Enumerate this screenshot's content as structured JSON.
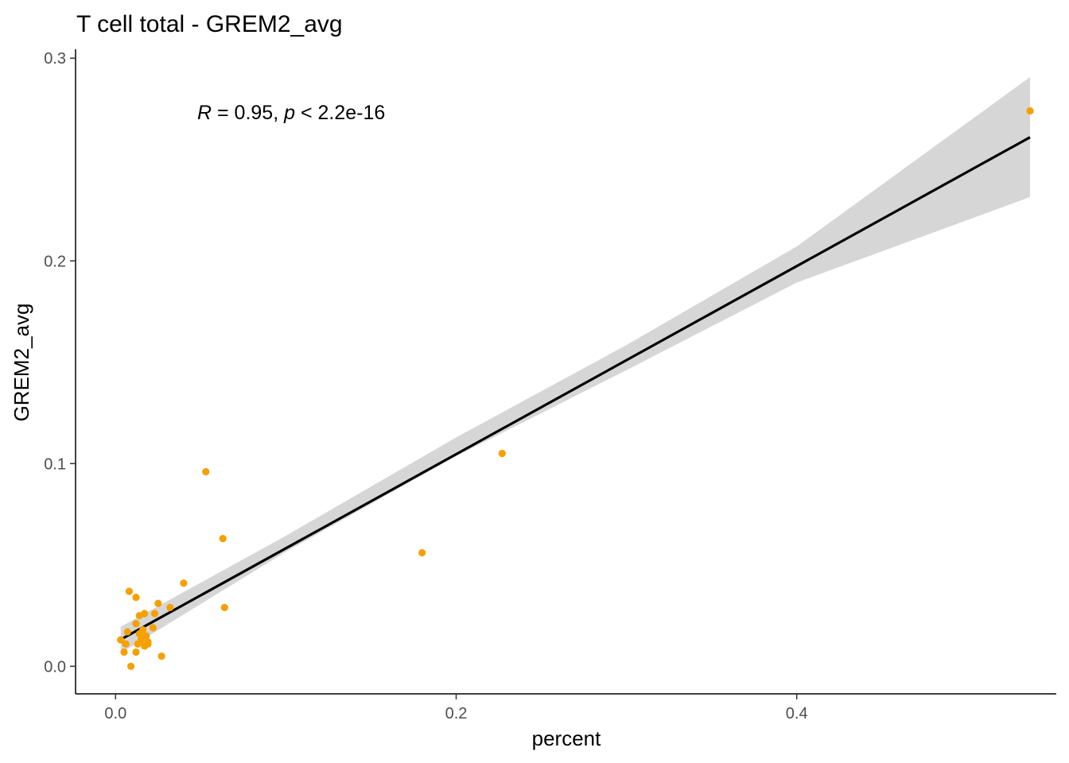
{
  "chart_data": {
    "type": "scatter",
    "title": "T cell total - GREM2_avg",
    "xlabel": "percent",
    "ylabel": "GREM2_avg",
    "xlim": [
      -0.0235,
      0.5524
    ],
    "ylim": [
      -0.0136,
      0.3044
    ],
    "x_ticks": [
      0.0,
      0.2,
      0.4
    ],
    "x_tick_labels": [
      "0.0",
      "0.2",
      "0.4"
    ],
    "y_ticks": [
      0.0,
      0.1,
      0.2,
      0.3
    ],
    "y_tick_labels": [
      "0.0",
      "0.1",
      "0.2",
      "0.3"
    ],
    "grid": false,
    "point_color": "#F5A000",
    "line_color": "#000000",
    "band_color": "#D6D6D6",
    "annotation": {
      "r_symbol": "R",
      "r_text": " = 0.95, ",
      "p_symbol": "p",
      "p_text": " < 2.2e-16"
    },
    "points": [
      {
        "x": 0.003,
        "y": 0.013
      },
      {
        "x": 0.005,
        "y": 0.007
      },
      {
        "x": 0.006,
        "y": 0.011
      },
      {
        "x": 0.007,
        "y": 0.017
      },
      {
        "x": 0.008,
        "y": 0.037
      },
      {
        "x": 0.009,
        "y": 0.0
      },
      {
        "x": 0.012,
        "y": 0.007
      },
      {
        "x": 0.012,
        "y": 0.021
      },
      {
        "x": 0.012,
        "y": 0.034
      },
      {
        "x": 0.013,
        "y": 0.011
      },
      {
        "x": 0.014,
        "y": 0.016
      },
      {
        "x": 0.014,
        "y": 0.025
      },
      {
        "x": 0.015,
        "y": 0.013
      },
      {
        "x": 0.016,
        "y": 0.018
      },
      {
        "x": 0.017,
        "y": 0.01
      },
      {
        "x": 0.017,
        "y": 0.026
      },
      {
        "x": 0.018,
        "y": 0.015
      },
      {
        "x": 0.019,
        "y": 0.011
      },
      {
        "x": 0.019,
        "y": 0.012
      },
      {
        "x": 0.022,
        "y": 0.019
      },
      {
        "x": 0.023,
        "y": 0.026
      },
      {
        "x": 0.025,
        "y": 0.031
      },
      {
        "x": 0.027,
        "y": 0.005
      },
      {
        "x": 0.032,
        "y": 0.029
      },
      {
        "x": 0.04,
        "y": 0.041
      },
      {
        "x": 0.053,
        "y": 0.096
      },
      {
        "x": 0.063,
        "y": 0.063
      },
      {
        "x": 0.064,
        "y": 0.029
      },
      {
        "x": 0.18,
        "y": 0.056
      },
      {
        "x": 0.227,
        "y": 0.105
      },
      {
        "x": 0.537,
        "y": 0.274
      }
    ],
    "fit_line": {
      "x": [
        0.003,
        0.537
      ],
      "y": [
        0.0132,
        0.261
      ]
    },
    "confidence_band": {
      "x": [
        0.003,
        0.1,
        0.2,
        0.3,
        0.4,
        0.537
      ],
      "lower": [
        0.0065,
        0.0565,
        0.1037,
        0.1461,
        0.1893,
        0.2315
      ],
      "upper": [
        0.0195,
        0.0644,
        0.1129,
        0.1585,
        0.2071,
        0.2907
      ]
    }
  }
}
